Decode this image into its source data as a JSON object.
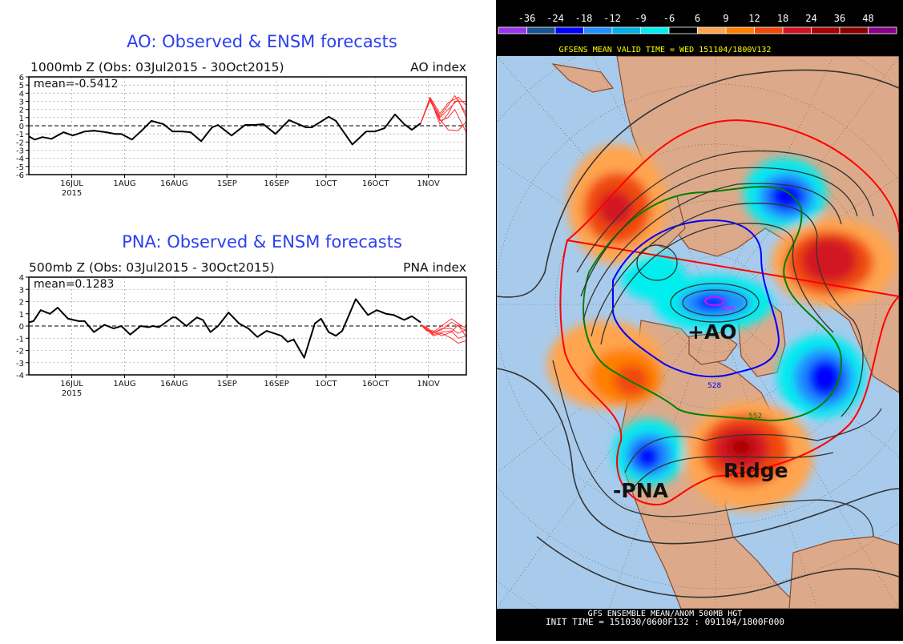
{
  "chart_data": [
    {
      "type": "line",
      "title": "AO: Observed & ENSM forecasts",
      "subtitle": "1000mb Z (Obs: 03Jul2015 - 30Oct2015)",
      "index_label": "AO index",
      "mean_label": "mean=-0.5412",
      "x_unit": "days since 1 Jul 2015",
      "xlim": [
        2,
        134.5
      ],
      "ylim": [
        -6,
        6
      ],
      "yticks": [
        -6,
        -5,
        -4,
        -3,
        -2,
        -1,
        0,
        1,
        2,
        3,
        4,
        5,
        6
      ],
      "xticks": [
        {
          "x": 15,
          "label": "16JUL",
          "sub": "2015"
        },
        {
          "x": 31,
          "label": "1AUG"
        },
        {
          "x": 46,
          "label": "16AUG"
        },
        {
          "x": 62,
          "label": "1SEP"
        },
        {
          "x": 77,
          "label": "16SEP"
        },
        {
          "x": 92,
          "label": "1OCT"
        },
        {
          "x": 107,
          "label": "16OCT"
        },
        {
          "x": 123,
          "label": "1NOV"
        }
      ],
      "grid": true,
      "series": [
        {
          "name": "observed",
          "color": "#000000",
          "x": [
            2,
            3.8,
            6.1,
            8.9,
            12.5,
            15.3,
            19,
            21.7,
            25.4,
            28.1,
            30,
            33.2,
            36.4,
            39.1,
            42.8,
            45.5,
            48.3,
            51,
            54.2,
            57.5,
            59.3,
            63.4,
            67.5,
            70.3,
            73,
            76.7,
            80.8,
            85.9,
            87.7,
            92.8,
            95,
            100,
            104.2,
            106.9,
            109.7,
            112.9,
            115.7,
            118,
            120.7
          ],
          "y": [
            -1.3,
            -1.7,
            -1.4,
            -1.6,
            -0.8,
            -1.2,
            -0.7,
            -0.6,
            -0.8,
            -1.0,
            -1.0,
            -1.7,
            -0.5,
            0.6,
            0.2,
            -0.7,
            -0.7,
            -0.8,
            -1.9,
            -0.2,
            0.1,
            -1.2,
            0.1,
            0.1,
            0.2,
            -1.0,
            0.7,
            -0.2,
            -0.2,
            1.1,
            0.6,
            -2.3,
            -0.7,
            -0.7,
            -0.3,
            1.4,
            0.2,
            -0.5,
            0.3
          ]
        },
        {
          "name": "ensemble-1",
          "color": "#ff3030",
          "x": [
            120.7,
            123.5,
            126.5,
            129,
            131,
            134.5
          ],
          "y": [
            0.3,
            3.4,
            0.2,
            1.5,
            3.0,
            3.0
          ]
        },
        {
          "name": "ensemble-2",
          "color": "#ff3030",
          "x": [
            120.7,
            123.5,
            126.5,
            129,
            131,
            134.5
          ],
          "y": [
            0.3,
            3.3,
            1.2,
            2.5,
            3.7,
            1.5
          ]
        },
        {
          "name": "ensemble-3",
          "color": "#ff3030",
          "x": [
            120.7,
            123.5,
            126.5,
            129,
            131,
            134.5
          ],
          "y": [
            0.3,
            3.2,
            0.6,
            1.0,
            2.0,
            -0.8
          ]
        },
        {
          "name": "ensemble-4",
          "color": "#ff3030",
          "x": [
            120.7,
            123.5,
            126.5,
            129,
            132,
            134.5
          ],
          "y": [
            0.3,
            3.5,
            1.5,
            2.8,
            3.5,
            2.5
          ]
        },
        {
          "name": "ensemble-5",
          "color": "#ff3030",
          "x": [
            120.7,
            123.5,
            126.5,
            129,
            132,
            134.5
          ],
          "y": [
            0.3,
            3.1,
            0.8,
            -0.5,
            -0.6,
            0.5
          ]
        },
        {
          "name": "ensemble-6",
          "color": "#ff3030",
          "x": [
            120.7,
            123.5,
            126.5,
            129,
            132,
            134.5
          ],
          "y": [
            0.3,
            3.4,
            1.0,
            2.0,
            3.2,
            1.0
          ]
        }
      ]
    },
    {
      "type": "line",
      "title": "PNA: Observed & ENSM forecasts",
      "subtitle": "500mb Z (Obs: 03Jul2015 - 30Oct2015)",
      "index_label": "PNA index",
      "mean_label": "mean=0.1283",
      "x_unit": "days since 1 Jul 2015",
      "xlim": [
        2,
        134.5
      ],
      "ylim": [
        -4,
        4
      ],
      "yticks": [
        -4,
        -3,
        -2,
        -1,
        0,
        1,
        2,
        3,
        4
      ],
      "xticks": [
        {
          "x": 15,
          "label": "16JUL",
          "sub": "2015"
        },
        {
          "x": 31,
          "label": "1AUG"
        },
        {
          "x": 46,
          "label": "16AUG"
        },
        {
          "x": 62,
          "label": "1SEP"
        },
        {
          "x": 77,
          "label": "16SEP"
        },
        {
          "x": 92,
          "label": "1OCT"
        },
        {
          "x": 107,
          "label": "16OCT"
        },
        {
          "x": 123,
          "label": "1NOV"
        }
      ],
      "grid": true,
      "series": [
        {
          "name": "observed",
          "color": "#000000",
          "x": [
            2,
            3.4,
            5.6,
            8.4,
            10.7,
            13.9,
            17.1,
            18.9,
            21.7,
            24.9,
            27.7,
            30,
            32.7,
            35.9,
            38.2,
            39.6,
            41.4,
            45.5,
            46.5,
            49.7,
            52.9,
            54.7,
            57,
            59.3,
            62.5,
            65.7,
            68.5,
            71.2,
            74,
            78.5,
            80.4,
            82.2,
            85.4,
            88.6,
            90.5,
            92.8,
            95,
            96.9,
            101,
            104.7,
            107.4,
            110.2,
            112.5,
            115.7,
            118,
            120.7
          ],
          "y": [
            0.3,
            0.4,
            1.3,
            1.0,
            1.5,
            0.6,
            0.4,
            0.4,
            -0.5,
            0.1,
            -0.2,
            0.0,
            -0.7,
            0.0,
            -0.1,
            0.0,
            -0.1,
            0.7,
            0.7,
            0.0,
            0.7,
            0.5,
            -0.5,
            0.0,
            1.1,
            0.2,
            -0.2,
            -0.9,
            -0.4,
            -0.8,
            -1.3,
            -1.1,
            -2.6,
            0.2,
            0.6,
            -0.5,
            -0.8,
            -0.4,
            2.2,
            0.9,
            1.3,
            1.0,
            0.9,
            0.5,
            0.8,
            0.3
          ]
        },
        {
          "name": "ensemble-1",
          "color": "#ff3030",
          "x": [
            120.7,
            122.5,
            124.5,
            127,
            130,
            132,
            134.5
          ],
          "y": [
            0.1,
            -0.3,
            -0.6,
            -0.3,
            0.3,
            0.0,
            -0.4
          ]
        },
        {
          "name": "ensemble-2",
          "color": "#ff3030",
          "x": [
            120.7,
            122.5,
            124.5,
            127,
            130,
            132,
            134.5
          ],
          "y": [
            0.1,
            -0.2,
            -0.7,
            -0.5,
            -0.4,
            -1.0,
            -0.8
          ]
        },
        {
          "name": "ensemble-3",
          "color": "#ff3030",
          "x": [
            120.7,
            122.5,
            124.5,
            127,
            130,
            132,
            134.5
          ],
          "y": [
            0.1,
            -0.4,
            -0.5,
            0.0,
            0.6,
            0.2,
            -0.2
          ]
        },
        {
          "name": "ensemble-4",
          "color": "#ff3030",
          "x": [
            120.7,
            122.5,
            124.5,
            127,
            130,
            132,
            134.5
          ],
          "y": [
            0.1,
            -0.3,
            -0.8,
            -0.6,
            -1.0,
            -1.4,
            -1.2
          ]
        },
        {
          "name": "ensemble-5",
          "color": "#ff3030",
          "x": [
            120.7,
            122.5,
            124.5,
            127,
            130,
            132,
            134.5
          ],
          "y": [
            0.1,
            -0.1,
            -0.6,
            -0.2,
            -0.2,
            -0.6,
            -0.3
          ]
        },
        {
          "name": "ensemble-6",
          "color": "#ff3030",
          "x": [
            120.7,
            122.5,
            124.5,
            127,
            130,
            132,
            134.5
          ],
          "y": [
            0.1,
            -0.3,
            -0.4,
            -0.8,
            -0.5,
            0.1,
            -0.9
          ]
        }
      ]
    }
  ],
  "map": {
    "colorbar": {
      "labels": [
        "-36",
        "-24",
        "-18",
        "-12",
        "-9",
        "-6",
        "6",
        "9",
        "12",
        "18",
        "24",
        "36",
        "48"
      ],
      "colors": [
        "#9933ee",
        "#1a5590",
        "#0000ff",
        "#2090ff",
        "#00aee8",
        "#00eeee",
        "#000000",
        "#ffa550",
        "#ff8000",
        "#f04808",
        "#d21222",
        "#a80000",
        "#8a0000",
        "#880088"
      ]
    },
    "valid_time": "GFSENS MEAN VALID TIME = WED 151104/1800V132",
    "footer_line1": "GFS ENSEMBLE MEAN/ANOM 500MB HGT",
    "footer_line2": "INIT TIME = 151030/0600F132 : 091104/1800F000",
    "contour_labels": [
      "496",
      "528",
      "552"
    ],
    "annotations": {
      "ao": "+AO",
      "ridge": "Ridge",
      "pna": "-PNA"
    },
    "colors": {
      "ocean": "#a8cbec",
      "land": "#dcaa8a",
      "coast": "#8b4a2a"
    }
  }
}
